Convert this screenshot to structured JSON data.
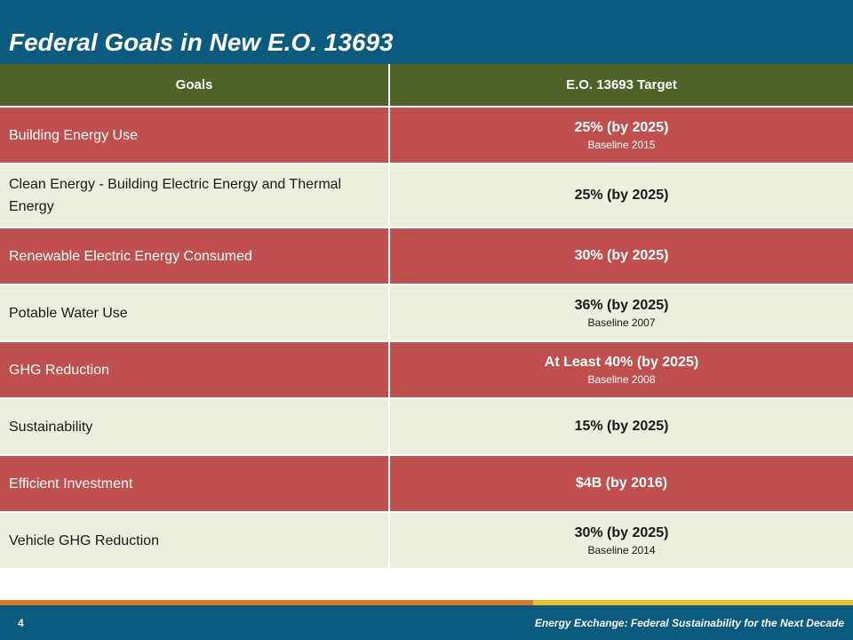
{
  "slide": {
    "title": "Federal Goals in New E.O. 13693",
    "table": {
      "headers": [
        "Goals",
        "E.O. 13693 Target"
      ],
      "rows": [
        {
          "goal": "Building Energy Use",
          "target": "25% (by 2025)",
          "baseline": "Baseline 2015"
        },
        {
          "goal": "Clean Energy - Building Electric Energy and Thermal Energy",
          "target": "25% (by 2025)",
          "baseline": ""
        },
        {
          "goal": "Renewable Electric Energy Consumed",
          "target": "30% (by 2025)",
          "baseline": ""
        },
        {
          "goal": "Potable Water Use",
          "target": "36% (by 2025)",
          "baseline": "Baseline 2007"
        },
        {
          "goal": "GHG Reduction",
          "target": "At Least 40% (by 2025)",
          "baseline": "Baseline 2008"
        },
        {
          "goal": "Sustainability",
          "target": "15% (by 2025)",
          "baseline": ""
        },
        {
          "goal": "Efficient Investment",
          "target": "$4B (by 2016)",
          "baseline": ""
        },
        {
          "goal": "Vehicle GHG Reduction",
          "target": "30% (by 2025)",
          "baseline": "Baseline 2014"
        }
      ]
    },
    "footer": {
      "page_number": "4",
      "caption": "Energy Exchange: Federal Sustainability for the Next Decade"
    },
    "colors": {
      "header_bg": "#0b5a80",
      "table_header_bg": "#4f6228",
      "row_red": "#c0504d",
      "row_light": "#eaefde",
      "accent_orange": "#d9782a",
      "accent_yellow": "#e8c02f"
    }
  }
}
